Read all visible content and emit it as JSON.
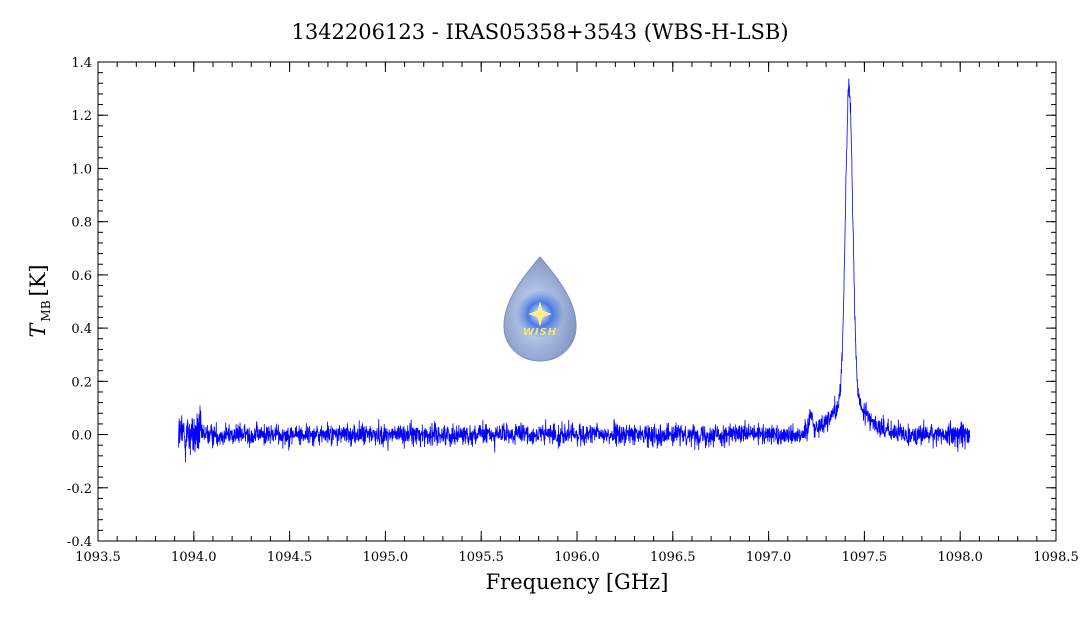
{
  "chart_data": {
    "type": "line",
    "title": "1342206123 - IRAS05358+3543 (WBS-H-LSB)",
    "xlabel": "Frequency [GHz]",
    "ylabel": {
      "main": "T",
      "subscript": "MB",
      "unit": "[K]"
    },
    "xlim": [
      1093.5,
      1098.5
    ],
    "ylim": [
      -0.4,
      1.4
    ],
    "xticks": [
      "1093.5",
      "1094.0",
      "1094.5",
      "1095.0",
      "1095.5",
      "1096.0",
      "1096.5",
      "1097.0",
      "1097.5",
      "1098.0",
      "1098.5"
    ],
    "yticks": [
      "-0.4",
      "-0.2",
      "0.0",
      "0.2",
      "0.4",
      "0.6",
      "0.8",
      "1.0",
      "1.2",
      "1.4"
    ],
    "grid": false,
    "series": [
      {
        "color": "#0000ff",
        "x_range": [
          1093.92,
          1098.05
        ],
        "noise_rms_k": 0.04,
        "noise_rms_low_edge_k": 0.09,
        "noise_rms_high_edge_k": 0.05,
        "features": [
          {
            "kind": "gaussian",
            "center": 1097.42,
            "peak": 1.18,
            "fwhm": 0.045
          },
          {
            "kind": "gaussian_wing",
            "center": 1097.42,
            "peak": 0.12,
            "fwhm": 0.22
          },
          {
            "kind": "gaussian",
            "center": 1097.22,
            "peak": 0.08,
            "fwhm": 0.02
          }
        ]
      }
    ],
    "logo": {
      "text": "WISH"
    }
  }
}
